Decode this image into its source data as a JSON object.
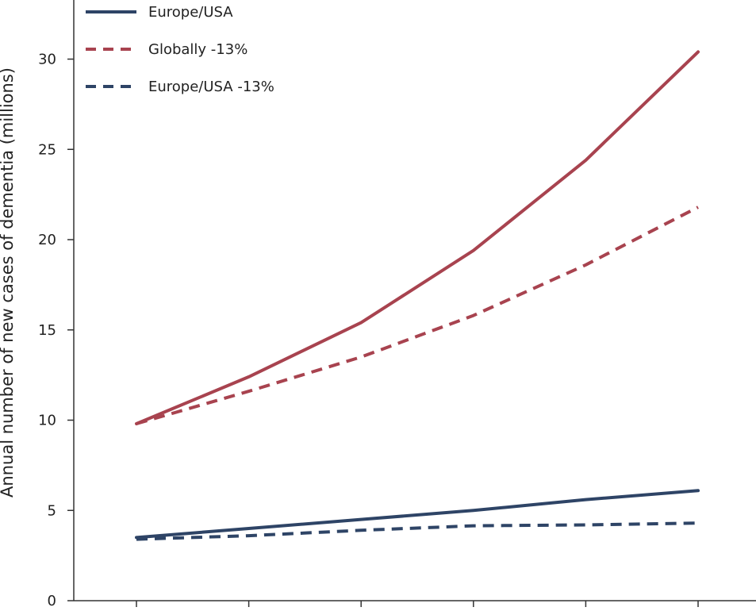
{
  "chart_data": {
    "type": "line",
    "title": "",
    "xlabel": "",
    "ylabel": "Annual number of new cases of dementia (millions)",
    "ylim": [
      0,
      33
    ],
    "yticks": [
      0,
      5,
      10,
      15,
      20,
      25,
      30
    ],
    "grid": false,
    "legend_placement": "top-left",
    "x": [
      1,
      2,
      3,
      4,
      5,
      6
    ],
    "series": [
      {
        "name": "",
        "color": "#a8434f",
        "style": "solid",
        "values": [
          9.8,
          12.4,
          15.4,
          19.4,
          24.4,
          30.4
        ]
      },
      {
        "name": "Europe/USA",
        "color": "#2e4466",
        "style": "solid",
        "values": [
          3.5,
          4.0,
          4.5,
          5.0,
          5.6,
          6.1
        ]
      },
      {
        "name": "Globally -13%",
        "color": "#a8434f",
        "style": "dashed",
        "values": [
          9.8,
          11.6,
          13.5,
          15.8,
          18.6,
          21.8
        ]
      },
      {
        "name": "Europe/USA -13%",
        "color": "#2e4466",
        "style": "dashed",
        "values": [
          3.4,
          3.6,
          3.9,
          4.15,
          4.2,
          4.3
        ]
      }
    ],
    "legend": [
      {
        "series_index": 1,
        "label": "Europe/USA",
        "color": "#2e4466",
        "style": "solid"
      },
      {
        "series_index": 2,
        "label": "Globally -13%",
        "color": "#a8434f",
        "style": "dashed"
      },
      {
        "series_index": 3,
        "label": "Europe/USA -13%",
        "color": "#2e4466",
        "style": "dashed"
      }
    ]
  }
}
